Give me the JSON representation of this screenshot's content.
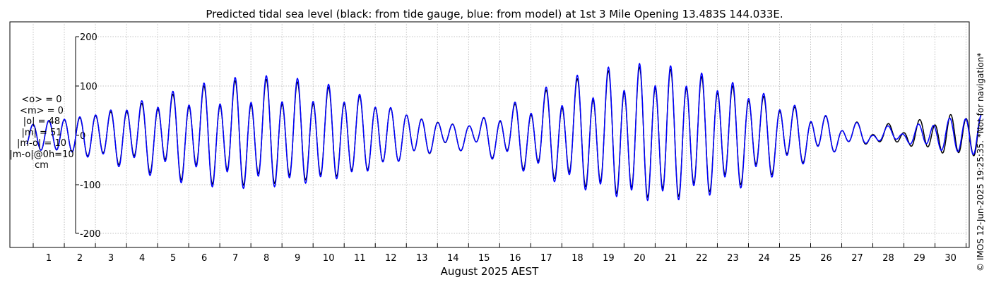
{
  "chart_data": {
    "type": "line",
    "title": "Predicted tidal sea level (black: from tide gauge, blue: from model) at 1st 3 Mile Opening 13.483S 144.033E.",
    "xlabel": "August 2025 AEST",
    "x_ticks": [
      "1",
      "2",
      "3",
      "4",
      "5",
      "6",
      "7",
      "8",
      "9",
      "10",
      "11",
      "12",
      "13",
      "14",
      "15",
      "16",
      "17",
      "18",
      "19",
      "20",
      "21",
      "22",
      "23",
      "24",
      "25",
      "26",
      "27",
      "28",
      "29",
      "30"
    ],
    "xlim": [
      0.25,
      31.1
    ],
    "y_ticks": [
      "200",
      "100",
      "0",
      "-100",
      "-200"
    ],
    "ylim": [
      -225,
      225
    ],
    "grid": true,
    "series": [
      {
        "name": "black: from tide gauge",
        "color": "#000000",
        "semidiurnal_amplitude_cm": [
          25,
          32,
          40,
          52,
          63,
          75,
          83,
          88,
          88,
          84,
          78,
          62,
          42,
          25,
          20,
          38,
          60,
          80,
          98,
          112,
          118,
          112,
          98,
          80,
          58,
          36,
          20,
          12,
          15,
          30,
          40
        ],
        "phase_deg": [
          0,
          0,
          0,
          0,
          0,
          0,
          0,
          0,
          0,
          0,
          0,
          0,
          0,
          0,
          0,
          0,
          0,
          0,
          0,
          0,
          0,
          0,
          0,
          0,
          0,
          0,
          0,
          0,
          0,
          0,
          0
        ]
      },
      {
        "name": "blue: from model",
        "color": "#0000ff",
        "semidiurnal_amplitude_cm": [
          25,
          33,
          42,
          56,
          68,
          80,
          88,
          94,
          94,
          90,
          82,
          64,
          42,
          24,
          20,
          40,
          64,
          86,
          104,
          118,
          124,
          118,
          104,
          86,
          62,
          38,
          20,
          10,
          10,
          25,
          38
        ],
        "phase_deg": [
          0,
          0,
          0,
          0,
          0,
          0,
          0,
          0,
          0,
          0,
          0,
          0,
          0,
          0,
          0,
          0,
          0,
          0,
          0,
          0,
          0,
          0,
          0,
          0,
          0,
          0,
          0,
          0,
          25,
          35,
          10
        ]
      }
    ]
  },
  "stats": {
    "mean_obs": "<o> = 0",
    "mean_model": "<m> = 0",
    "abs_obs": "|o| = 48",
    "abs_model": "|m| = 51",
    "abs_diff": "|m-o| = 10",
    "abs_diff_0h": "|m-o|@0h=10",
    "unit": "cm"
  },
  "credit": "© IMOS 12-Jun-2025 19:25:35.  *Not for navigation*"
}
